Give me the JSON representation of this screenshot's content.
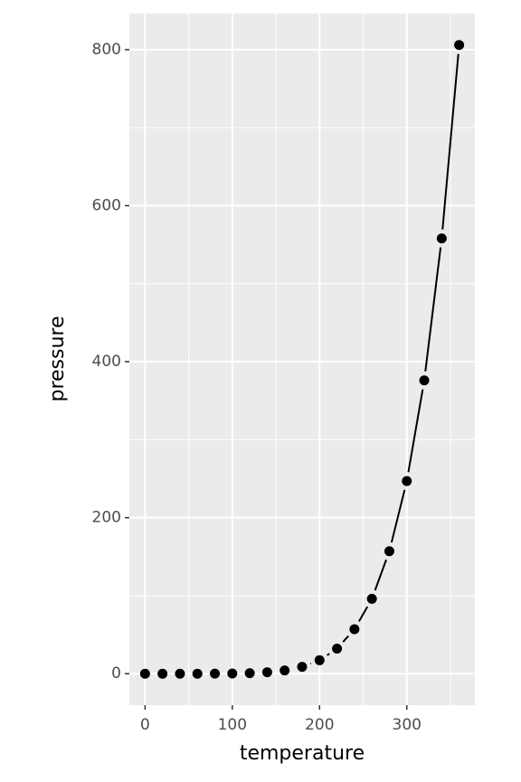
{
  "chart_data": {
    "type": "pointpath",
    "x_label": "temperature",
    "y_label": "pressure",
    "x": [
      0,
      20,
      40,
      60,
      80,
      100,
      120,
      140,
      160,
      180,
      200,
      220,
      240,
      260,
      280,
      300,
      320,
      340,
      360
    ],
    "values": [
      0.0002,
      0.0012,
      0.006,
      0.03,
      0.09,
      0.27,
      0.75,
      1.85,
      4.2,
      8.8,
      17.3,
      32.1,
      57,
      96,
      157,
      247,
      376,
      558,
      806
    ],
    "color": "#000000",
    "xlim": [
      -18,
      378
    ],
    "ylim": [
      -40.3,
      846.3
    ],
    "xticks": [
      0,
      100,
      200,
      300
    ],
    "yticks": [
      0,
      200,
      400,
      600,
      800
    ],
    "x_minor_ticks": [
      50,
      150,
      250,
      350
    ],
    "y_minor_ticks": [
      100,
      300,
      500,
      700
    ],
    "grid": true,
    "panel_color": "#ebebeb"
  }
}
